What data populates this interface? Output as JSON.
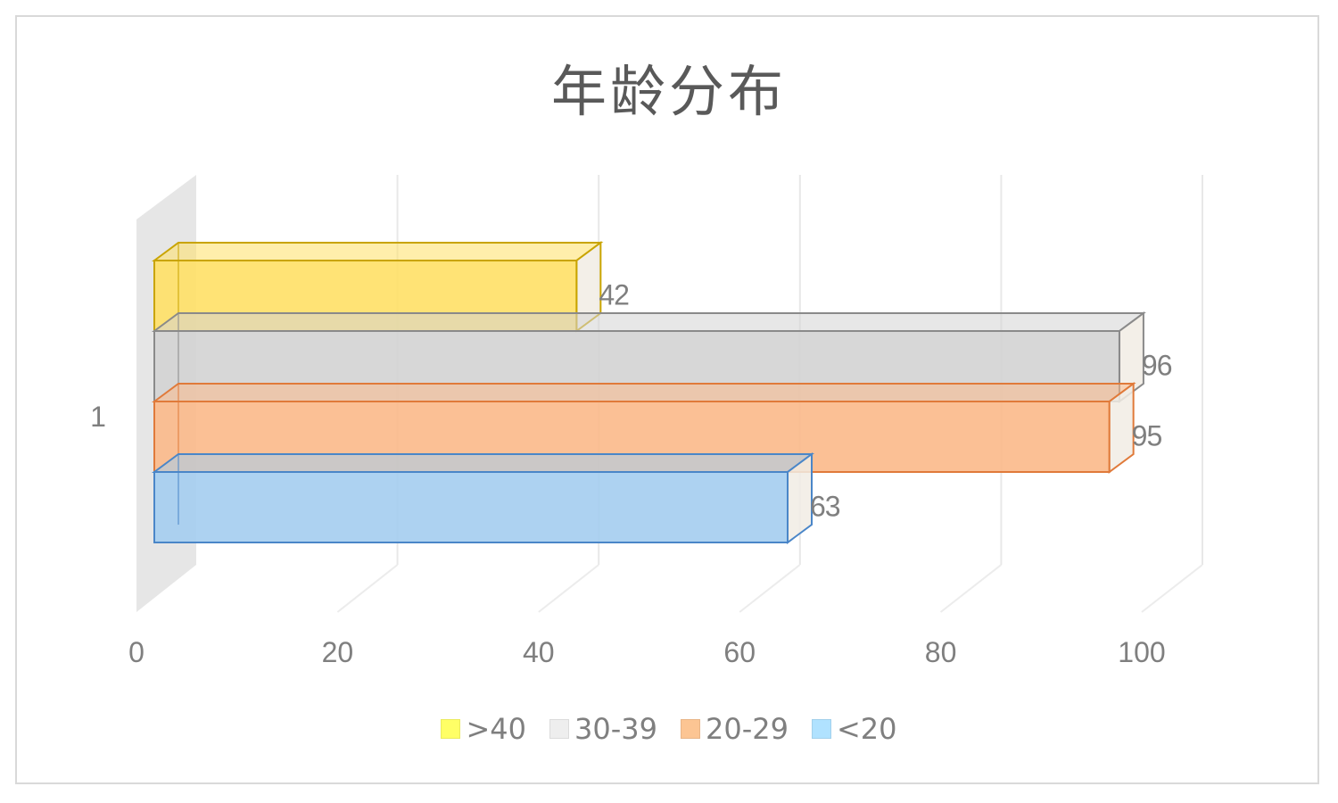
{
  "chart_data": {
    "type": "bar",
    "orientation": "horizontal",
    "style": "3d",
    "title": "年龄分布",
    "categories": [
      "1"
    ],
    "xlim": [
      0,
      100
    ],
    "ticks": [
      "0",
      "20",
      "40",
      "60",
      "80",
      "100"
    ],
    "grid": true,
    "legend_position": "bottom",
    "series": [
      {
        "name": ">40",
        "values": [
          42
        ],
        "label": "42",
        "color": "#ffe066",
        "edge": "#c9a400",
        "swatch": "#ffff66"
      },
      {
        "name": "30-39",
        "values": [
          96
        ],
        "label": "96",
        "color": "#d3d3d3",
        "edge": "#8a8a8a",
        "swatch": "#eeeeee"
      },
      {
        "name": "20-29",
        "values": [
          95
        ],
        "label": "95",
        "color": "#fbb98a",
        "edge": "#e07a3a",
        "swatch": "#fcc593"
      },
      {
        "name": "<20",
        "values": [
          63
        ],
        "label": "63",
        "color": "#a4cdf0",
        "edge": "#4a86c8",
        "swatch": "#b0e2ff"
      }
    ]
  }
}
